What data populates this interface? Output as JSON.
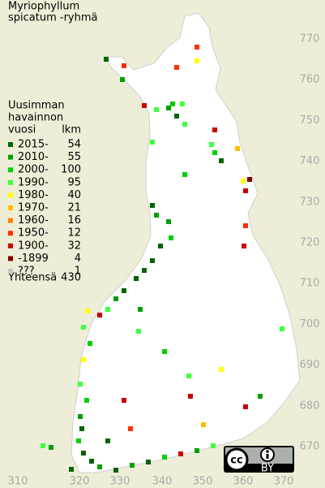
{
  "title": [
    "Myriophyllum",
    "spicatum -ryhmä"
  ],
  "legend": {
    "heading": [
      "Uusimman",
      "havainnon"
    ],
    "col_year": "vuosi",
    "col_count": "lkm",
    "rows": [
      {
        "label": "2015-",
        "count": "54",
        "color": "#006400"
      },
      {
        "label": "2010-",
        "count": "55",
        "color": "#00a000"
      },
      {
        "label": "2000-",
        "count": "100",
        "color": "#00d000"
      },
      {
        "label": "1990-",
        "count": "95",
        "color": "#40ff40"
      },
      {
        "label": "1980-",
        "count": "40",
        "color": "#ffff00"
      },
      {
        "label": "1970-",
        "count": "21",
        "color": "#ffc000"
      },
      {
        "label": "1960-",
        "count": "16",
        "color": "#ff8000"
      },
      {
        "label": "1950-",
        "count": "12",
        "color": "#ff3000"
      },
      {
        "label": "1900-",
        "count": "32",
        "color": "#cc0000"
      },
      {
        "label": "-1899",
        "count": "4",
        "color": "#800000"
      },
      {
        "label": "???",
        "count": "1",
        "color": "#c8c8c8"
      }
    ],
    "total_label": "Yhteensä",
    "total": "430"
  },
  "x_labels": [
    "310",
    "320",
    "330",
    "340",
    "350",
    "360",
    "370"
  ],
  "y_labels": [
    "770",
    "760",
    "750",
    "740",
    "730",
    "720",
    "710",
    "700",
    "690",
    "680",
    "670"
  ],
  "license": {
    "by": "BY"
  }
}
